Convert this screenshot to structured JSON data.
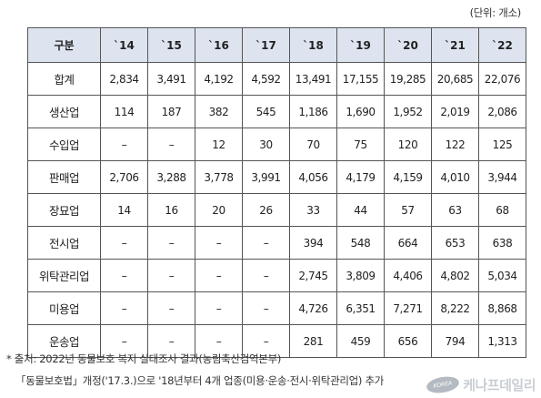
{
  "unit_note": "(단위: 개소)",
  "table": {
    "corner_label": "구분",
    "years": [
      "`14",
      "`15",
      "`16",
      "`17",
      "`18",
      "`19",
      "`20",
      "`21",
      "`22"
    ],
    "rows": [
      {
        "label": "합계",
        "values": [
          "2,834",
          "3,491",
          "4,192",
          "4,592",
          "13,491",
          "17,155",
          "19,285",
          "20,685",
          "22,076"
        ]
      },
      {
        "label": "생산업",
        "values": [
          "114",
          "187",
          "382",
          "545",
          "1,186",
          "1,690",
          "1,952",
          "2,019",
          "2,086"
        ]
      },
      {
        "label": "수입업",
        "values": [
          "–",
          "–",
          "12",
          "30",
          "70",
          "75",
          "120",
          "122",
          "125"
        ]
      },
      {
        "label": "판매업",
        "values": [
          "2,706",
          "3,288",
          "3,778",
          "3,991",
          "4,056",
          "4,179",
          "4,159",
          "4,010",
          "3,944"
        ]
      },
      {
        "label": "장묘업",
        "values": [
          "14",
          "16",
          "20",
          "26",
          "33",
          "44",
          "57",
          "63",
          "68"
        ]
      },
      {
        "label": "전시업",
        "values": [
          "–",
          "–",
          "–",
          "–",
          "394",
          "548",
          "664",
          "653",
          "638"
        ]
      },
      {
        "label": "위탁관리업",
        "values": [
          "–",
          "–",
          "–",
          "–",
          "2,745",
          "3,809",
          "4,406",
          "4,802",
          "5,034"
        ]
      },
      {
        "label": "미용업",
        "values": [
          "–",
          "–",
          "–",
          "–",
          "4,726",
          "6,351",
          "7,271",
          "8,222",
          "8,868"
        ]
      },
      {
        "label": "운송업",
        "values": [
          "–",
          "–",
          "–",
          "–",
          "281",
          "459",
          "656",
          "794",
          "1,313"
        ]
      }
    ]
  },
  "footnotes": {
    "source": "* 출처: 2022년 동물보호 복지 실태조사 결과(농림축산검역본부)",
    "note": "「동물보호법」개정('17.3.)으로 '18년부터 4개 업종(미용·운송·전시·위탁관리업) 추가"
  },
  "watermark": {
    "logo_text": "KOREA",
    "text": "케나프데일리"
  }
}
